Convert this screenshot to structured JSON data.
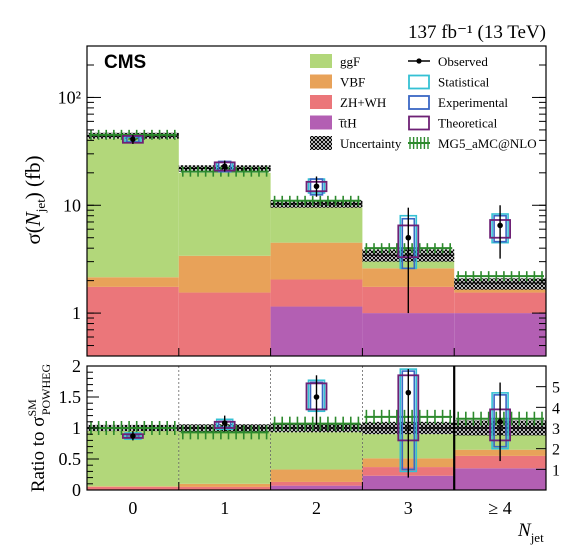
{
  "header": {
    "lumi_energy": "137 fb⁻¹ (13 TeV)",
    "experiment": "CMS"
  },
  "chart_data": {
    "type": "bar",
    "stacked": true,
    "categories": [
      "0",
      "1",
      "2",
      "3",
      "≥ 4"
    ],
    "xlabel": "N_jet",
    "top_panel": {
      "ylabel": "σ(N_jet) (fb)",
      "yscale": "log",
      "ylim": [
        0.4,
        300
      ],
      "yticks": [
        1,
        10,
        100
      ],
      "ytick_labels": [
        "1",
        "10",
        "10²"
      ],
      "series": [
        {
          "name": "t̅tH",
          "color": "#B35FB3",
          "values": [
            0,
            0,
            1.15,
            1.0,
            1.0
          ]
        },
        {
          "name": "ZH+WH",
          "color": "#EB767A",
          "values": [
            1.75,
            1.55,
            0.9,
            0.75,
            0.55
          ]
        },
        {
          "name": "VBF",
          "color": "#E8A259",
          "values": [
            0.4,
            1.85,
            2.45,
            0.85,
            0.2
          ]
        },
        {
          "name": "ggF",
          "color": "#B2D77A",
          "values": [
            41.85,
            16.6,
            5.6,
            0.85,
            0.15
          ]
        }
      ],
      "uncertainty_band": {
        "name": "Uncertainty",
        "center": [
          44,
          22,
          10.3,
          3.45,
          1.9
        ],
        "low": [
          41.5,
          20.5,
          9.5,
          3.0,
          1.65
        ],
        "high": [
          47,
          23.5,
          11.2,
          3.9,
          2.1
        ]
      },
      "mg5_amcatnlo": {
        "name": "MG5_aMC@NLO",
        "values": [
          45,
          20.5,
          11.0,
          4.0,
          2.2
        ]
      },
      "observed": {
        "name": "Observed",
        "values": [
          41,
          23,
          15,
          5.0,
          6.5
        ],
        "err_low": [
          37,
          20.5,
          12,
          1.0,
          3.2
        ],
        "err_high": [
          45,
          26,
          18.5,
          9.5,
          10
        ]
      },
      "statistical": {
        "name": "Statistical",
        "low": [
          39,
          21,
          13,
          2.6,
          4.5
        ],
        "high": [
          43,
          25,
          17.5,
          8.0,
          8.3
        ]
      },
      "experimental": {
        "name": "Experimental",
        "low": [
          38.5,
          20.5,
          12.5,
          2.6,
          4.6
        ],
        "high": [
          43.5,
          25.5,
          17.5,
          7.5,
          8.0
        ]
      },
      "theoretical": {
        "name": "Theoretical",
        "low": [
          38,
          21,
          13.5,
          3.3,
          5.0
        ],
        "high": [
          44,
          25,
          16.5,
          6.5,
          7.3
        ]
      }
    },
    "ratio_panel": {
      "ylabel": "Ratio to σ^SM_POWHEG",
      "ylim": [
        0,
        2
      ],
      "yticks": [
        0,
        0.5,
        1,
        1.5,
        2
      ],
      "ytick_labels": [
        "0",
        "0.5",
        "1",
        "1.5",
        "2"
      ],
      "right_axis_bin": "≥ 4",
      "right_ylim": [
        0,
        6
      ],
      "right_yticks": [
        1,
        2,
        3,
        4,
        5
      ],
      "right_ytick_labels": [
        "1",
        "2",
        "3",
        "4",
        "5"
      ],
      "observed": [
        0.87,
        1.08,
        1.5,
        1.57,
        3.3
      ],
      "observed_err_low": [
        0.8,
        0.95,
        1.05,
        0.2,
        1.4
      ],
      "observed_err_high": [
        0.95,
        1.2,
        1.85,
        1.95,
        5.2
      ],
      "stacked_fractions": [
        [
          0,
          0,
          0.07,
          0.23,
          0.35
        ],
        [
          0.05,
          0.05,
          0.06,
          0.14,
          0.2
        ],
        [
          0.01,
          0.05,
          0.2,
          0.14,
          0.1
        ],
        [
          0.94,
          0.9,
          0.67,
          0.49,
          0.35
        ]
      ],
      "mg5_amcatnlo": [
        1.0,
        0.93,
        1.07,
        1.18,
        1.15
      ],
      "statistical_low": [
        0.82,
        0.98,
        1.27,
        0.3,
        2.0
      ],
      "statistical_high": [
        0.92,
        1.14,
        1.77,
        1.95,
        4.7
      ],
      "theoretical_low": [
        0.84,
        1.0,
        1.3,
        0.8,
        2.4
      ],
      "theoretical_high": [
        0.9,
        1.1,
        1.72,
        1.85,
        3.9
      ],
      "uncertainty_low": [
        0.95,
        0.94,
        0.93,
        0.9,
        0.88
      ],
      "uncertainty_high": [
        1.05,
        1.06,
        1.07,
        1.1,
        1.12
      ]
    }
  }
}
